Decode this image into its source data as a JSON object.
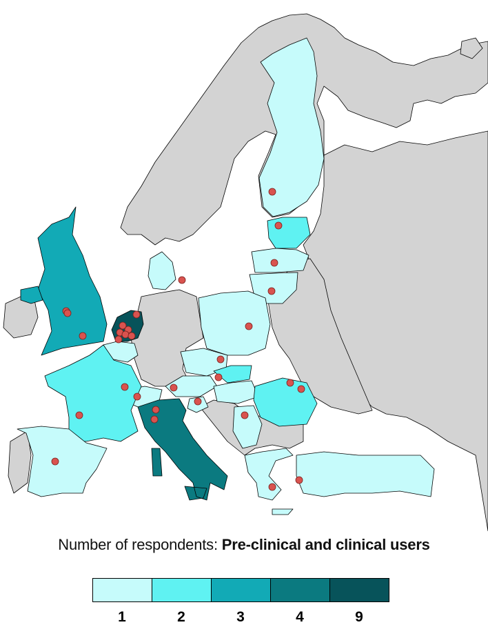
{
  "title": {
    "prefix": "Number of respondents: ",
    "emphasis": "Pre-clinical and clinical users"
  },
  "legend": [
    {
      "label": "1",
      "color": "#c6fbfb"
    },
    {
      "label": "2",
      "color": "#5ff2f2"
    },
    {
      "label": "3",
      "color": "#12aab6"
    },
    {
      "label": "4",
      "color": "#0b7a80"
    },
    {
      "label": "9",
      "color": "#07535a"
    }
  ],
  "colors": {
    "land": "#d3d3d3",
    "sea": "#ffffff",
    "site_marker": "#d9534f"
  },
  "countries": [
    {
      "name": "Finland",
      "respondents": 1
    },
    {
      "name": "Estonia",
      "respondents": 2
    },
    {
      "name": "Latvia",
      "respondents": 1
    },
    {
      "name": "Lithuania",
      "respondents": 1
    },
    {
      "name": "Denmark",
      "respondents": 1
    },
    {
      "name": "United Kingdom",
      "respondents": 3
    },
    {
      "name": "Ireland",
      "respondents": 3
    },
    {
      "name": "Netherlands",
      "respondents": 9
    },
    {
      "name": "Belgium",
      "respondents": 1
    },
    {
      "name": "Poland",
      "respondents": 1
    },
    {
      "name": "Czech Republic",
      "respondents": 1
    },
    {
      "name": "Slovakia",
      "respondents": 2
    },
    {
      "name": "Austria",
      "respondents": 1
    },
    {
      "name": "Slovenia",
      "respondents": 1
    },
    {
      "name": "Hungary",
      "respondents": 1
    },
    {
      "name": "Romania",
      "respondents": 2
    },
    {
      "name": "Serbia",
      "respondents": 1
    },
    {
      "name": "Switzerland",
      "respondents": 1
    },
    {
      "name": "France",
      "respondents": 2
    },
    {
      "name": "Italy",
      "respondents": 4
    },
    {
      "name": "Spain",
      "respondents": 1
    },
    {
      "name": "Greece",
      "respondents": 1
    },
    {
      "name": "Turkey",
      "respondents": 1
    }
  ]
}
